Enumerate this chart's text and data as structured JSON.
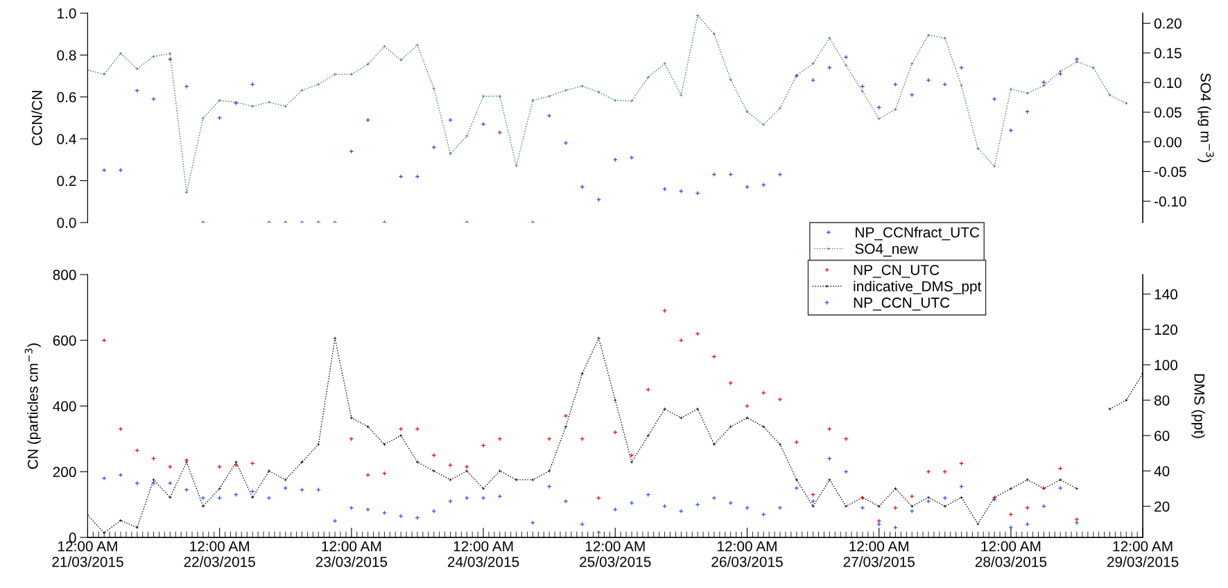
{
  "chart_data": [
    {
      "type": "scatter",
      "ylabel": "CCN/CN",
      "y2label": "SO4 (µg m$^{−3}$)",
      "tick_labels": "y",
      "marker": "cross",
      "legend": "bottom",
      "grid": false,
      "x": [
        "2015-03-21T00:00",
        "2015-03-21T03:00",
        "2015-03-21T06:00",
        "2015-03-21T09:00",
        "2015-03-21T12:00",
        "2015-03-21T15:00",
        "2015-03-21T18:00",
        "2015-03-21T21:00",
        "2015-03-22T00:00",
        "2015-03-22T03:00",
        "2015-03-22T06:00",
        "2015-03-22T09:00",
        "2015-03-22T12:00",
        "2015-03-22T15:00",
        "2015-03-22T18:00",
        "2015-03-22T21:00",
        "2015-03-23T00:00",
        "2015-03-23T03:00",
        "2015-03-23T06:00",
        "2015-03-23T09:00",
        "2015-03-23T12:00",
        "2015-03-23T15:00",
        "2015-03-23T18:00",
        "2015-03-23T21:00",
        "2015-03-24T00:00",
        "2015-03-24T03:00",
        "2015-03-24T06:00",
        "2015-03-24T09:00",
        "2015-03-24T12:00",
        "2015-03-24T15:00",
        "2015-03-24T18:00",
        "2015-03-24T21:00",
        "2015-03-25T00:00",
        "2015-03-25T03:00",
        "2015-03-25T06:00",
        "2015-03-25T09:00",
        "2015-03-25T12:00",
        "2015-03-25T15:00",
        "2015-03-25T18:00",
        "2015-03-25T21:00",
        "2015-03-26T00:00",
        "2015-03-26T03:00",
        "2015-03-26T06:00",
        "2015-03-26T09:00",
        "2015-03-26T12:00",
        "2015-03-26T15:00",
        "2015-03-26T18:00",
        "2015-03-26T21:00",
        "2015-03-27T00:00",
        "2015-03-27T03:00",
        "2015-03-27T06:00",
        "2015-03-27T09:00",
        "2015-03-27T12:00",
        "2015-03-27T15:00",
        "2015-03-27T18:00",
        "2015-03-27T21:00",
        "2015-03-28T00:00",
        "2015-03-28T03:00",
        "2015-03-28T06:00",
        "2015-03-28T09:00",
        "2015-03-28T12:00",
        "2015-03-28T15:00",
        "2015-03-28T18:00",
        "2015-03-28T21:00"
      ],
      "xlim": [
        "2015-03-21T00:00",
        "2015-03-29T00:00"
      ],
      "ylim": [
        0,
        1.0
      ],
      "yticks": [
        {
          "value": 0,
          "label": "0.0"
        },
        {
          "value": 0.2,
          "label": "0.2"
        },
        {
          "value": 0.4,
          "label": "0.4"
        },
        {
          "value": 0.6,
          "label": "0.6"
        },
        {
          "value": 0.8,
          "label": "0.8"
        },
        {
          "value": 1.0,
          "label": "1.0"
        }
      ],
      "y2lim": [
        -0.136,
        0.217
      ],
      "y2ticks": [
        {
          "value": -0.1,
          "label": "-0.10"
        },
        {
          "value": -0.05,
          "label": "-0.05"
        },
        {
          "value": 0,
          "label": "0.00"
        },
        {
          "value": 0.05,
          "label": "0.05"
        },
        {
          "value": 0.1,
          "label": "0.10"
        },
        {
          "value": 0.15,
          "label": "0.15"
        },
        {
          "value": 0.2,
          "label": "0.20"
        }
      ],
      "series": [
        {
          "name": "NP_CCNfract_UTC",
          "color": "#7a1fe0",
          "values": [
            null,
            0.25,
            0.25,
            0.63,
            0.59,
            0.78,
            0.65,
            0,
            0.5,
            0.57,
            0.66,
            0,
            0,
            0,
            0,
            0,
            0.34,
            0.49,
            0,
            0.22,
            0.22,
            0.36,
            0.49,
            0,
            0.47,
            0.43,
            null,
            0,
            0.51,
            0.38,
            0.17,
            0.11,
            0.3,
            0.31,
            null,
            0.16,
            0.15,
            0.14,
            0.23,
            0.23,
            0.17,
            0.18,
            0.23,
            0.7,
            0.68,
            0.74,
            0.79,
            0.65,
            0.55,
            0.66,
            0.61,
            0.68,
            0.66,
            0.74,
            null,
            0.59,
            0.44,
            0.53,
            0.67,
            0.71,
            0.78,
            null,
            null,
            null
          ]
        },
        {
          "name": "SO4_new",
          "type": "line",
          "axis": "y2",
          "line_style": "dotted",
          "color": "#2e7d4f",
          "values": [
            0.121,
            0.114,
            0.149,
            0.123,
            0.144,
            0.149,
            -0.085,
            0.04,
            0.07,
            0.067,
            0.06,
            0.067,
            0.06,
            0.087,
            0.097,
            0.114,
            0.114,
            0.131,
            0.161,
            0.138,
            0.163,
            0.09,
            -0.02,
            0.01,
            0.077,
            0.077,
            -0.04,
            0.07,
            0.077,
            0.087,
            0.094,
            0.084,
            0.07,
            0.069,
            0.109,
            0.132,
            0.079,
            0.213,
            0.182,
            0.105,
            0.051,
            0.029,
            0.057,
            0.112,
            0.132,
            0.175,
            0.129,
            0.085,
            0.039,
            0.055,
            0.132,
            0.18,
            0.175,
            0.095,
            -0.011,
            -0.041,
            0.089,
            0.082,
            0.095,
            0.119,
            0.135,
            0.125,
            0.079,
            0.065
          ]
        }
      ]
    },
    {
      "type": "scatter",
      "ylabel": "CN (particles cm$^{−3}$)",
      "y2label": "DMS (ppt)",
      "marker": "cross",
      "legend": "top",
      "grid": false,
      "x": [
        "2015-03-21T00:00",
        "2015-03-21T03:00",
        "2015-03-21T06:00",
        "2015-03-21T09:00",
        "2015-03-21T12:00",
        "2015-03-21T15:00",
        "2015-03-21T18:00",
        "2015-03-21T21:00",
        "2015-03-22T00:00",
        "2015-03-22T03:00",
        "2015-03-22T06:00",
        "2015-03-22T09:00",
        "2015-03-22T12:00",
        "2015-03-22T15:00",
        "2015-03-22T18:00",
        "2015-03-22T21:00",
        "2015-03-23T00:00",
        "2015-03-23T03:00",
        "2015-03-23T06:00",
        "2015-03-23T09:00",
        "2015-03-23T12:00",
        "2015-03-23T15:00",
        "2015-03-23T18:00",
        "2015-03-23T21:00",
        "2015-03-24T00:00",
        "2015-03-24T03:00",
        "2015-03-24T06:00",
        "2015-03-24T09:00",
        "2015-03-24T12:00",
        "2015-03-24T15:00",
        "2015-03-24T18:00",
        "2015-03-24T21:00",
        "2015-03-25T00:00",
        "2015-03-25T03:00",
        "2015-03-25T06:00",
        "2015-03-25T09:00",
        "2015-03-25T12:00",
        "2015-03-25T15:00",
        "2015-03-25T18:00",
        "2015-03-25T21:00",
        "2015-03-26T00:00",
        "2015-03-26T03:00",
        "2015-03-26T06:00",
        "2015-03-26T09:00",
        "2015-03-26T12:00",
        "2015-03-26T15:00",
        "2015-03-26T18:00",
        "2015-03-26T21:00",
        "2015-03-27T00:00",
        "2015-03-27T03:00",
        "2015-03-27T06:00",
        "2015-03-27T09:00",
        "2015-03-27T12:00",
        "2015-03-27T15:00",
        "2015-03-27T18:00",
        "2015-03-27T21:00",
        "2015-03-28T00:00",
        "2015-03-28T03:00",
        "2015-03-28T06:00",
        "2015-03-28T09:00",
        "2015-03-28T12:00",
        "2015-03-28T15:00",
        "2015-03-28T18:00",
        "2015-03-28T21:00",
        "2015-03-29T00:00"
      ],
      "xlim": [
        "2015-03-21T00:00",
        "2015-03-29T00:00"
      ],
      "xticks": [
        {
          "value": "2015-03-21",
          "label": "12:00 AM\n21/03/2015"
        },
        {
          "value": "2015-03-22",
          "label": "12:00 AM\n22/03/2015"
        },
        {
          "value": "2015-03-23",
          "label": "12:00 AM\n23/03/2015"
        },
        {
          "value": "2015-03-24",
          "label": "12:00 AM\n24/03/2015"
        },
        {
          "value": "2015-03-25",
          "label": "12:00 AM\n25/03/2015"
        },
        {
          "value": "2015-03-26",
          "label": "12:00 AM\n26/03/2015"
        },
        {
          "value": "2015-03-27",
          "label": "12:00 AM\n27/03/2015"
        },
        {
          "value": "2015-03-28",
          "label": "12:00 AM\n28/03/2015"
        },
        {
          "value": "2015-03-29",
          "label": "12:00 AM\n29/03/2015"
        }
      ],
      "ylim": [
        0,
        800
      ],
      "yticks": [
        0,
        200,
        400,
        600,
        800
      ],
      "y2lim": [
        2.4,
        151
      ],
      "y2ticks": [
        20,
        40,
        60,
        80,
        100,
        120,
        140
      ],
      "series": [
        {
          "name": "NP_CN_UTC",
          "color": "#ff0000",
          "values": [
            null,
            600,
            330,
            265,
            240,
            215,
            235,
            null,
            215,
            220,
            225,
            null,
            null,
            null,
            null,
            null,
            300,
            190,
            195,
            330,
            330,
            250,
            220,
            215,
            280,
            300,
            null,
            null,
            300,
            370,
            300,
            120,
            320,
            250,
            450,
            690,
            600,
            620,
            550,
            470,
            400,
            440,
            420,
            290,
            130,
            330,
            300,
            120,
            50,
            90,
            125,
            200,
            200,
            225,
            null,
            120,
            70,
            90,
            150,
            210,
            55,
            null,
            null,
            null,
            null
          ]
        },
        {
          "name": "indicative_DMS_ppt",
          "type": "line",
          "axis": "y2",
          "line_style": "dotted",
          "color": "#000000",
          "values": [
            15,
            5,
            12,
            8,
            35,
            25,
            45,
            20,
            30,
            45,
            25,
            40,
            35,
            45,
            55,
            115,
            70,
            65,
            55,
            60,
            45,
            40,
            35,
            40,
            30,
            40,
            35,
            35,
            40,
            65,
            95,
            115,
            80,
            45,
            60,
            75,
            70,
            75,
            55,
            65,
            70,
            65,
            55,
            35,
            20,
            35,
            20,
            25,
            20,
            30,
            20,
            25,
            20,
            25,
            10,
            25,
            30,
            35,
            30,
            35,
            30,
            null,
            75,
            80,
            95
          ]
        },
        {
          "name": "NP_CCN_UTC",
          "color": "#1a55ff",
          "values": [
            null,
            180,
            190,
            165,
            165,
            165,
            145,
            120,
            120,
            130,
            140,
            120,
            150,
            145,
            145,
            50,
            90,
            85,
            75,
            65,
            60,
            80,
            110,
            120,
            120,
            125,
            null,
            45,
            155,
            110,
            40,
            15,
            85,
            105,
            130,
            95,
            80,
            100,
            120,
            105,
            90,
            70,
            90,
            150,
            110,
            240,
            200,
            90,
            40,
            30,
            80,
            110,
            120,
            155,
            null,
            115,
            30,
            40,
            95,
            150,
            45,
            null,
            null,
            null,
            null
          ]
        }
      ]
    }
  ]
}
